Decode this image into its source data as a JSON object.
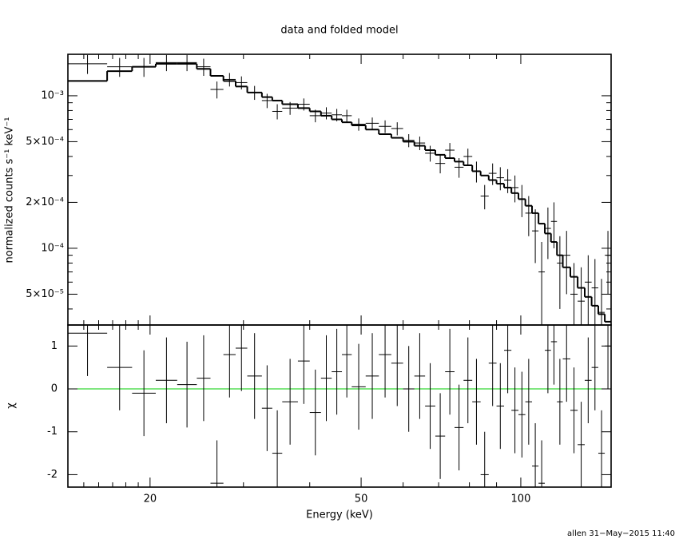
{
  "title": "data and folded model",
  "footer": "allen 31−May−2015 11:40",
  "chart_data": [
    {
      "type": "errorbar",
      "ylabel": "normalized counts s⁻¹ keV⁻¹",
      "xlog": true,
      "ylog": true,
      "xlim": [
        14,
        148
      ],
      "ylim": [
        3.14e-05,
        0.00187
      ],
      "yticks": [
        {
          "value": 0.001,
          "label": "10⁻³"
        },
        {
          "value": 0.0005,
          "label": "5×10⁻⁴"
        },
        {
          "value": 0.0002,
          "label": "2×10⁻⁴"
        },
        {
          "value": 0.0001,
          "label": "10⁻⁴"
        },
        {
          "value": 5e-05,
          "label": "5×10⁻⁵"
        }
      ],
      "yminor": [
        4e-05,
        6e-05,
        7e-05,
        8e-05,
        9e-05,
        0.0003,
        0.0004,
        0.0006,
        0.0007,
        0.0008,
        0.0009
      ],
      "x_low": [
        14,
        16.6,
        18.5,
        20.5,
        22.5,
        24.5,
        26,
        27.5,
        29,
        30.5,
        32.5,
        34,
        35.5,
        38,
        40,
        42,
        44,
        46,
        48,
        51,
        54,
        57,
        60,
        63,
        66,
        69,
        72,
        75,
        78,
        81,
        84,
        87,
        90,
        93,
        96,
        99,
        102,
        105,
        108,
        111,
        114,
        117,
        120,
        124,
        128,
        132,
        136,
        140,
        144
      ],
      "x_high": [
        16.6,
        18.5,
        20.5,
        22.5,
        24.5,
        26,
        27.5,
        29,
        30.5,
        32.5,
        34,
        35.5,
        38,
        40,
        42,
        44,
        46,
        48,
        51,
        54,
        57,
        60,
        63,
        66,
        69,
        72,
        75,
        78,
        81,
        84,
        87,
        90,
        93,
        96,
        99,
        102,
        105,
        108,
        111,
        114,
        117,
        120,
        124,
        128,
        132,
        136,
        140,
        144,
        148
      ],
      "values": [
        0.00162,
        0.00155,
        0.00155,
        0.00165,
        0.00165,
        0.00155,
        0.0011,
        0.00128,
        0.00122,
        0.00105,
        0.00093,
        0.00079,
        0.00083,
        0.00088,
        0.00074,
        0.00077,
        0.00075,
        0.00074,
        0.00065,
        0.00066,
        0.00063,
        0.00061,
        0.00051,
        0.00049,
        0.00042,
        0.00036,
        0.00044,
        0.00034,
        0.0004,
        0.00032,
        0.00022,
        0.00031,
        0.00029,
        0.00028,
        0.00025,
        0.00021,
        0.00017,
        0.00013,
        7e-05,
        0.000135,
        0.00015,
        8e-05,
        9e-05,
        5e-05,
        4.5e-05,
        6e-05,
        5.5e-05,
        3.8e-05,
        9e-05
      ],
      "errors": [
        0.00023,
        0.00022,
        0.00022,
        0.0002,
        0.0002,
        0.0002,
        0.00014,
        0.00013,
        0.00012,
        0.00011,
        0.0001,
        9e-05,
        8e-05,
        8e-05,
        7e-05,
        7e-05,
        7e-05,
        7e-05,
        6e-05,
        6e-05,
        6e-05,
        6e-05,
        5e-05,
        5e-05,
        5e-05,
        5e-05,
        5e-05,
        5e-05,
        5e-05,
        5e-05,
        4e-05,
        5e-05,
        5e-05,
        5e-05,
        5e-05,
        5e-05,
        5e-05,
        5e-05,
        4e-05,
        5e-05,
        5e-05,
        4e-05,
        4e-05,
        3e-05,
        3e-05,
        3e-05,
        3e-05,
        2.5e-05,
        4e-05
      ],
      "model": [
        0.00125,
        0.00145,
        0.00155,
        0.00162,
        0.00162,
        0.0015,
        0.00135,
        0.00125,
        0.00115,
        0.00105,
        0.00098,
        0.00093,
        0.00088,
        0.00083,
        0.00079,
        0.00074,
        0.0007,
        0.00067,
        0.00064,
        0.0006,
        0.00056,
        0.00053,
        0.0005,
        0.00047,
        0.00044,
        0.00041,
        0.00039,
        0.00037,
        0.00035,
        0.00032,
        0.0003,
        0.00028,
        0.000265,
        0.00025,
        0.00023,
        0.00021,
        0.00019,
        0.00017,
        0.000145,
        0.000125,
        0.00011,
        9e-05,
        7.5e-05,
        6.5e-05,
        5.5e-05,
        4.8e-05,
        4.2e-05,
        3.7e-05,
        3.3e-05
      ]
    },
    {
      "type": "errorbar",
      "ylabel": "χ",
      "xlabel": "Energy (keV)",
      "xlog": true,
      "xlim": [
        14,
        148
      ],
      "ylim": [
        -2.29,
        1.49
      ],
      "xticks": [
        20,
        50,
        100
      ],
      "xminor": [
        15,
        16,
        17,
        18,
        19,
        30,
        40,
        60,
        70,
        80,
        90
      ],
      "yticks": [
        1,
        0,
        -1,
        -2
      ],
      "reference_line": {
        "value": 0,
        "color": "#00cc00"
      },
      "values": [
        1.3,
        0.5,
        -0.1,
        0.2,
        0.1,
        0.25,
        -2.2,
        0.8,
        0.95,
        0.3,
        -0.45,
        -1.5,
        -0.3,
        0.65,
        -0.55,
        0.25,
        0.4,
        0.8,
        0.05,
        0.3,
        0.8,
        0.6,
        0.0,
        0.3,
        -0.4,
        -1.1,
        0.4,
        -0.9,
        0.2,
        -0.3,
        -2.0,
        0.6,
        -0.4,
        0.9,
        -0.5,
        -0.6,
        -0.3,
        -1.8,
        -2.2,
        0.9,
        1.1,
        -0.3,
        0.7,
        -0.5,
        -1.3,
        0.2,
        0.5,
        -1.5,
        1.0
      ],
      "errors": [
        1,
        1,
        1,
        1,
        1,
        1,
        1,
        1,
        1,
        1,
        1,
        1,
        1,
        1,
        1,
        1,
        1,
        1,
        1,
        1,
        1,
        1,
        1,
        1,
        1,
        1,
        1,
        1,
        1,
        1,
        1,
        1,
        1,
        1,
        1,
        1,
        1,
        1,
        1,
        1,
        1,
        1,
        1,
        1,
        1,
        1,
        1,
        1,
        1
      ]
    }
  ]
}
